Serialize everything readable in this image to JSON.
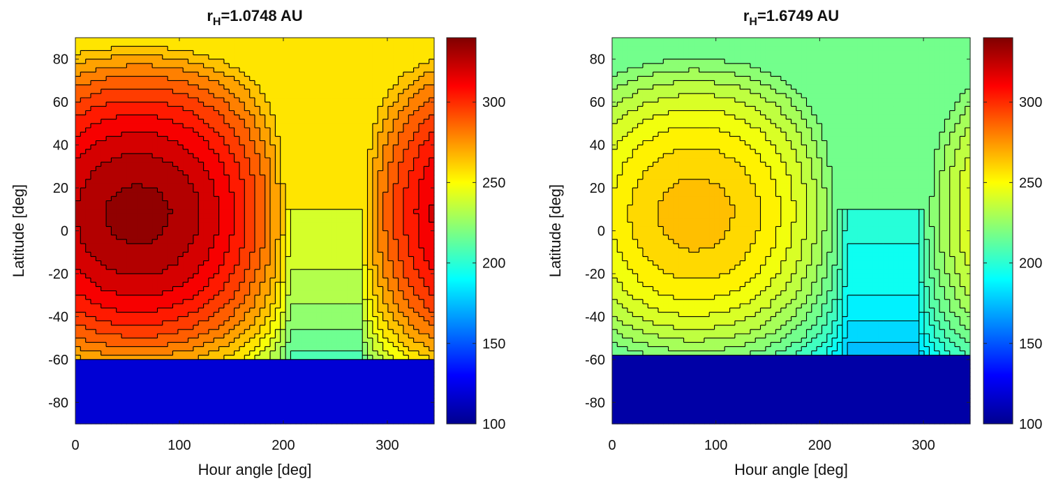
{
  "chart_data": [
    {
      "type": "heatmap",
      "subtype": "filled-contour",
      "title_prefix": "r",
      "title_subscript": "H",
      "title_suffix": "=1.0748 AU",
      "xlabel": "Hour angle [deg]",
      "ylabel": "Latitude [deg]",
      "xlim": [
        0,
        345
      ],
      "ylim": [
        -90,
        90
      ],
      "xticks": [
        0,
        100,
        200,
        300
      ],
      "yticks": [
        -80,
        -60,
        -40,
        -20,
        0,
        20,
        40,
        60,
        80
      ],
      "colorbar": {
        "range": [
          100,
          340
        ],
        "ticks": [
          100,
          150,
          200,
          250,
          300
        ],
        "colormap": "jet"
      },
      "field": {
        "peak_value": 335,
        "peak_hour_angle": 60,
        "peak_latitude": 10,
        "north_pole_value": 258,
        "south_cap_value": 120,
        "south_cap_edge_latitude": -60,
        "contour_interval": 8
      }
    },
    {
      "type": "heatmap",
      "subtype": "filled-contour",
      "title_prefix": "r",
      "title_subscript": "H",
      "title_suffix": "=1.6749 AU",
      "xlabel": "Hour angle [deg]",
      "ylabel": "Latitude [deg]",
      "xlim": [
        0,
        345
      ],
      "ylim": [
        -90,
        90
      ],
      "xticks": [
        0,
        100,
        200,
        300
      ],
      "yticks": [
        -80,
        -60,
        -40,
        -20,
        0,
        20,
        40,
        60,
        80
      ],
      "colorbar": {
        "range": [
          100,
          340
        ],
        "ticks": [
          100,
          150,
          200,
          250,
          300
        ],
        "colormap": "jet"
      },
      "field": {
        "peak_value": 265,
        "peak_hour_angle": 80,
        "peak_latitude": 10,
        "north_pole_value": 218,
        "south_cap_value": 108,
        "south_cap_edge_latitude": -58,
        "contour_interval": 6
      }
    }
  ]
}
